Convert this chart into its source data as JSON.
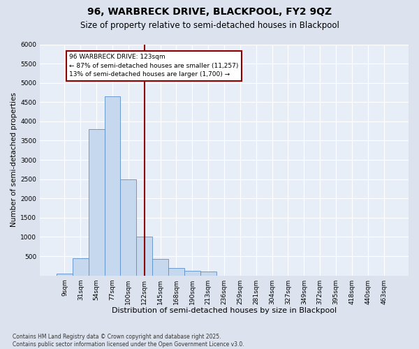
{
  "title_line1": "96, WARBRECK DRIVE, BLACKPOOL, FY2 9QZ",
  "title_line2": "Size of property relative to semi-detached houses in Blackpool",
  "xlabel": "Distribution of semi-detached houses by size in Blackpool",
  "ylabel": "Number of semi-detached properties",
  "bins": [
    "9sqm",
    "31sqm",
    "54sqm",
    "77sqm",
    "100sqm",
    "122sqm",
    "145sqm",
    "168sqm",
    "190sqm",
    "213sqm",
    "236sqm",
    "259sqm",
    "281sqm",
    "304sqm",
    "327sqm",
    "349sqm",
    "372sqm",
    "395sqm",
    "418sqm",
    "440sqm",
    "463sqm"
  ],
  "bar_heights": [
    50,
    450,
    3800,
    4650,
    2500,
    1000,
    420,
    200,
    120,
    100,
    0,
    0,
    0,
    0,
    0,
    0,
    0,
    0,
    0,
    0,
    0
  ],
  "bar_color": "#c5d8ee",
  "bar_edge_color": "#5b8fc9",
  "vline_pos": 5,
  "vline_color": "#8b0000",
  "annotation_title": "96 WARBRECK DRIVE: 123sqm",
  "annotation_line2": "← 87% of semi-detached houses are smaller (11,257)",
  "annotation_line3": "13% of semi-detached houses are larger (1,700) →",
  "ylim": [
    0,
    6000
  ],
  "yticks": [
    0,
    500,
    1000,
    1500,
    2000,
    2500,
    3000,
    3500,
    4000,
    4500,
    5000,
    5500,
    6000
  ],
  "footnote_line1": "Contains HM Land Registry data © Crown copyright and database right 2025.",
  "footnote_line2": "Contains public sector information licensed under the Open Government Licence v3.0.",
  "bg_color": "#dce3ee",
  "plot_bg_color": "#e8eef8",
  "grid_color": "#ffffff",
  "title_fontsize": 10,
  "subtitle_fontsize": 8.5,
  "xlabel_fontsize": 8,
  "ylabel_fontsize": 7.5,
  "tick_fontsize": 6.5,
  "footnote_fontsize": 5.5
}
